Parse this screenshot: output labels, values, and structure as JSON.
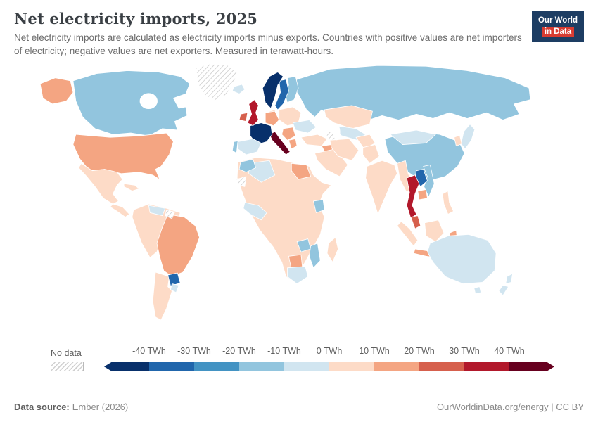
{
  "header": {
    "title": "Net electricity imports, 2025",
    "subtitle": "Net electricity imports are calculated as electricity imports minus exports. Countries with positive values are net importers of electricity; negative values are net exporters. Measured in terawatt-hours.",
    "logo": {
      "line1": "Our World",
      "line2": "in Data",
      "bg_color": "#1d3d63",
      "accent_color": "#d73c32"
    }
  },
  "legend": {
    "no_data_label": "No data",
    "tick_labels": [
      "-40 TWh",
      "-30 TWh",
      "-20 TWh",
      "-10 TWh",
      "0 TWh",
      "10 TWh",
      "20 TWh",
      "30 TWh",
      "40 TWh"
    ],
    "colors": [
      "#08306b",
      "#2166ac",
      "#4393c3",
      "#92c5de",
      "#d1e5f0",
      "#fddbc7",
      "#f4a582",
      "#d6604d",
      "#b2182b",
      "#67001f"
    ]
  },
  "footer": {
    "source_label": "Data source:",
    "source_value": "Ember (2026)",
    "right_text": "OurWorldinData.org/energy | CC BY"
  },
  "map": {
    "regions": {
      "greenland": "nodata",
      "iceland": "#d1e5f0",
      "canada": "#92c5de",
      "alaska": "#f4a582",
      "usa": "#f4a582",
      "mexico": "#fddbc7",
      "central-america": "#fddbc7",
      "cuba": "#fddbc7",
      "sa-northwest": "#fddbc7",
      "venezuela": "#d1e5f0",
      "guyanas": "nodata",
      "brazil": "#f4a582",
      "paraguay": "#2166ac",
      "argentina": "#fddbc7",
      "uruguay": "#d1e5f0",
      "norway": "#08306b",
      "sweden": "#2166ac",
      "finland": "#92c5de",
      "denmark": "#fddbc7",
      "uk": "#b2182b",
      "ireland": "#d6604d",
      "france": "#08306b",
      "spain": "#d1e5f0",
      "portugal": "#92c5de",
      "germany": "#f4a582",
      "central-europe": "#fddbc7",
      "ukraine": "#d1e5f0",
      "balkans": "#f4a582",
      "greece": "#f4a582",
      "italy": "#67001f",
      "russia": "#92c5de",
      "kazakhstan": "#fddbc7",
      "central-asia": "#d1e5f0",
      "turkmenistan": "nodata",
      "turkey": "#fddbc7",
      "iraq": "#f4a582",
      "saudi-arabia": "#fddbc7",
      "iran": "#fddbc7",
      "afghanistan": "#fddbc7",
      "pakistan": "#fddbc7",
      "china": "#92c5de",
      "mongolia": "#d1e5f0",
      "india": "#fddbc7",
      "myanmar": "#fddbc7",
      "thailand": "#b2182b",
      "laos": "#2166ac",
      "vietnam": "#92c5de",
      "cambodia": "#f4a582",
      "malaysia": "#d6604d",
      "sumatra": "#fddbc7",
      "borneo": "#fddbc7",
      "java": "#f4a582",
      "sulawesi": "#f4a582",
      "philippines": "#fddbc7",
      "new-guinea": "nodata",
      "japan": "#d1e5f0",
      "korea": "#fddbc7",
      "australia": "#d1e5f0",
      "tasmania": "#d1e5f0",
      "new-zealand": "#d1e5f0",
      "africa-base": "#fddbc7",
      "algeria": "#d1e5f0",
      "morocco": "#92c5de",
      "western-sahara": "nodata",
      "egypt": "#f4a582",
      "west-africa": "#d1e5f0",
      "ethiopia": "#92c5de",
      "zambia": "#92c5de",
      "mozambique": "#92c5de",
      "botswana": "#f4a582",
      "south-africa": "#d1e5f0",
      "madagascar": "#fddbc7"
    }
  },
  "chart_data": {
    "type": "heatmap",
    "subtype": "world-choropleth",
    "title": "Net electricity imports, 2025",
    "unit": "TWh",
    "legend_position": "bottom",
    "legend_bins": [
      {
        "range": "< -40",
        "color": "#08306b"
      },
      {
        "range": "-40 to -30",
        "color": "#2166ac"
      },
      {
        "range": "-30 to -20",
        "color": "#4393c3"
      },
      {
        "range": "-20 to -10",
        "color": "#92c5de"
      },
      {
        "range": "-10 to 0",
        "color": "#d1e5f0"
      },
      {
        "range": "0 to 10",
        "color": "#fddbc7"
      },
      {
        "range": "10 to 20",
        "color": "#f4a582"
      },
      {
        "range": "20 to 30",
        "color": "#d6604d"
      },
      {
        "range": "30 to 40",
        "color": "#b2182b"
      },
      {
        "range": "> 40",
        "color": "#67001f"
      }
    ],
    "no_data": {
      "label": "No data",
      "pattern": "diagonal-hatch"
    },
    "regions": [
      {
        "name": "France",
        "value_bin_twh": "< -40"
      },
      {
        "name": "Norway",
        "value_bin_twh": "< -40"
      },
      {
        "name": "Sweden",
        "value_bin_twh": "-40 to -30"
      },
      {
        "name": "Laos",
        "value_bin_twh": "-40 to -30"
      },
      {
        "name": "Paraguay",
        "value_bin_twh": "-40 to -30"
      },
      {
        "name": "Canada",
        "value_bin_twh": "-20 to -10"
      },
      {
        "name": "Russia",
        "value_bin_twh": "-20 to -10"
      },
      {
        "name": "China",
        "value_bin_twh": "-20 to -10"
      },
      {
        "name": "Vietnam",
        "value_bin_twh": "-20 to -10"
      },
      {
        "name": "Finland",
        "value_bin_twh": "-20 to -10"
      },
      {
        "name": "Spain",
        "value_bin_twh": "-10 to 0"
      },
      {
        "name": "Australia",
        "value_bin_twh": "-10 to 0"
      },
      {
        "name": "Japan",
        "value_bin_twh": "-10 to 0"
      },
      {
        "name": "Ukraine",
        "value_bin_twh": "-10 to 0"
      },
      {
        "name": "India",
        "value_bin_twh": "0 to 10"
      },
      {
        "name": "Mexico",
        "value_bin_twh": "0 to 10"
      },
      {
        "name": "Argentina",
        "value_bin_twh": "0 to 10"
      },
      {
        "name": "United States",
        "value_bin_twh": "10 to 20"
      },
      {
        "name": "Brazil",
        "value_bin_twh": "10 to 20"
      },
      {
        "name": "Germany",
        "value_bin_twh": "10 to 20"
      },
      {
        "name": "Ireland",
        "value_bin_twh": "20 to 30"
      },
      {
        "name": "Malaysia",
        "value_bin_twh": "20 to 30"
      },
      {
        "name": "United Kingdom",
        "value_bin_twh": "30 to 40"
      },
      {
        "name": "Thailand",
        "value_bin_twh": "30 to 40"
      },
      {
        "name": "Italy",
        "value_bin_twh": "> 40"
      },
      {
        "name": "Greenland",
        "value_bin_twh": "No data"
      },
      {
        "name": "Western Sahara",
        "value_bin_twh": "No data"
      },
      {
        "name": "Papua New Guinea",
        "value_bin_twh": "No data"
      },
      {
        "name": "Turkmenistan",
        "value_bin_twh": "No data"
      }
    ]
  }
}
